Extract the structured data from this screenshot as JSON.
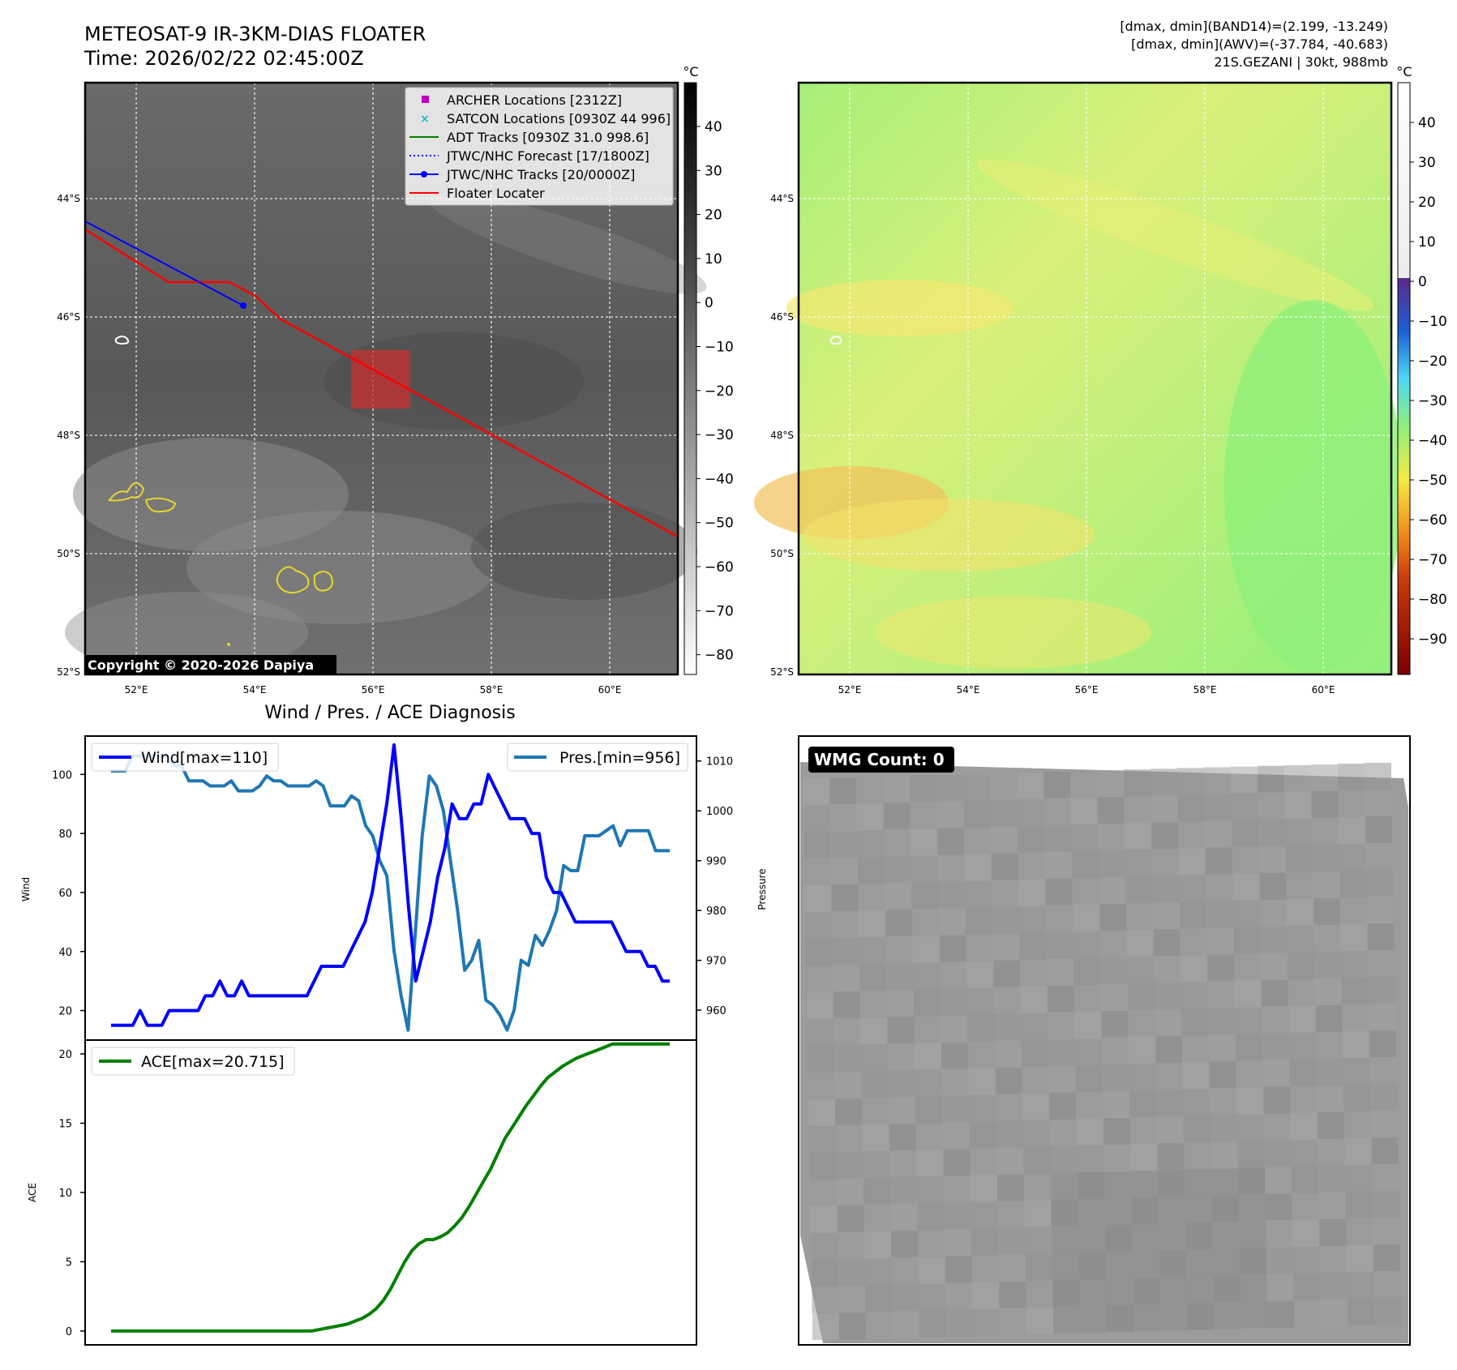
{
  "header": {
    "title": "METEOSAT-9 IR-3KM-DIAS FLOATER",
    "time": "Time: 2026/02/22 02:45:00Z",
    "band14": "[dmax, dmin](BAND14)=(2.199, -13.249)",
    "awv": "[dmax, dmin](AWV)=(-37.784, -40.683)",
    "storm": "21S.GEZANI | 30kt, 988mb"
  },
  "maps": {
    "lon_ticks": [
      "52°E",
      "54°E",
      "56°E",
      "58°E",
      "60°E"
    ],
    "lat_ticks": [
      "44°S",
      "46°S",
      "48°S",
      "50°S",
      "52°S"
    ],
    "copyright": "Copyright © 2020-2026 Dapiya",
    "ir_colorbar": {
      "unit": "°C",
      "ticks": [
        "40",
        "30",
        "20",
        "10",
        "0",
        "−10",
        "−20",
        "−30",
        "−40",
        "−50",
        "−60",
        "−70",
        "−80"
      ]
    },
    "awv_colorbar": {
      "unit": "°C",
      "ticks": [
        "40",
        "30",
        "20",
        "10",
        "0",
        "−10",
        "−20",
        "−30",
        "−40",
        "−50",
        "−60",
        "−70",
        "−80",
        "−90"
      ]
    },
    "legend": [
      {
        "label": "ARCHER Locations [2312Z]",
        "color": "#c000c0",
        "marker": "square"
      },
      {
        "label": "SATCON Locations [0930Z 44 996]",
        "color": "#17becf",
        "marker": "x"
      },
      {
        "label": "ADT Tracks [0930Z 31.0 998.6]",
        "color": "#008000",
        "marker": "line"
      },
      {
        "label": "JTWC/NHC Forecast [17/1800Z]",
        "color": "#0000ff",
        "marker": "dotted"
      },
      {
        "label": "JTWC/NHC Tracks [20/0000Z]",
        "color": "#0000ff",
        "marker": "line-dot"
      },
      {
        "label": "Floater Locater",
        "color": "#ff0000",
        "marker": "line"
      }
    ]
  },
  "diagnosis": {
    "title": "Wind / Pres. / ACE Diagnosis",
    "wind_label": "Wind",
    "pressure_label": "Pressure",
    "ace_label": "ACE",
    "wind_legend": "Wind[max=110]",
    "pres_legend": "Pres.[min=956]",
    "ace_legend": "ACE[max=20.715]",
    "wind_ticks": [
      "20",
      "40",
      "60",
      "80",
      "100"
    ],
    "pres_ticks": [
      "960",
      "970",
      "980",
      "990",
      "1000",
      "1010"
    ],
    "ace_ticks": [
      "0",
      "5",
      "10",
      "15",
      "20"
    ]
  },
  "wmg": {
    "label": "WMG Count: 0"
  },
  "chart_data": [
    {
      "type": "line",
      "title": "Wind / Pres. / ACE Diagnosis",
      "ylabel": "Wind",
      "ylim": [
        10,
        113
      ],
      "series": [
        {
          "name": "Wind[max=110]",
          "color": "#0000ff",
          "values": [
            15,
            15,
            15,
            15,
            20,
            15,
            15,
            15,
            20,
            20,
            20,
            20,
            20,
            25,
            25,
            30,
            25,
            25,
            30,
            25,
            25,
            25,
            25,
            25,
            25,
            25,
            25,
            25,
            30,
            35,
            35,
            35,
            35,
            40,
            45,
            50,
            60,
            75,
            90,
            110,
            85,
            55,
            30,
            40,
            50,
            65,
            75,
            90,
            85,
            85,
            90,
            90,
            100,
            95,
            90,
            85,
            85,
            85,
            80,
            80,
            65,
            60,
            60,
            55,
            50,
            50,
            50,
            50,
            50,
            50,
            45,
            40,
            40,
            40,
            35,
            35,
            30,
            30
          ]
        }
      ]
    },
    {
      "type": "line",
      "ylabel": "Pressure",
      "ylim": [
        954,
        1015
      ],
      "series": [
        {
          "name": "Pres.[min=956]",
          "color": "#1f77b4",
          "values": [
            1008,
            1008,
            1008,
            1011,
            1011,
            1011,
            1011,
            1011,
            1011,
            1009,
            1009,
            1006,
            1006,
            1006,
            1005,
            1005,
            1005,
            1006,
            1004,
            1004,
            1004,
            1005,
            1007,
            1006,
            1006,
            1005,
            1005,
            1005,
            1005,
            1006,
            1005,
            1001,
            1001,
            1001,
            1003,
            1002,
            997,
            995,
            990,
            987,
            972,
            963,
            956,
            975,
            995,
            1007,
            1005,
            1000,
            990,
            980,
            968,
            970,
            974,
            962,
            961,
            959,
            956,
            960,
            970,
            969,
            975,
            973,
            976,
            980,
            989,
            988,
            988,
            995,
            995,
            995,
            996,
            997,
            993,
            996,
            996,
            996,
            996,
            992,
            992,
            992
          ]
        }
      ]
    },
    {
      "type": "line",
      "ylabel": "ACE",
      "ylim": [
        -1,
        21
      ],
      "series": [
        {
          "name": "ACE[max=20.715]",
          "color": "#008000",
          "values": [
            0,
            0,
            0,
            0,
            0,
            0,
            0,
            0,
            0,
            0,
            0,
            0,
            0,
            0,
            0,
            0,
            0,
            0,
            0,
            0,
            0,
            0,
            0,
            0,
            0,
            0,
            0,
            0,
            0,
            0.1,
            0.2,
            0.3,
            0.4,
            0.5,
            0.7,
            0.9,
            1.2,
            1.6,
            2.2,
            3.0,
            4.0,
            5.0,
            5.8,
            6.3,
            6.6,
            6.6,
            6.8,
            7.1,
            7.6,
            8.2,
            9.0,
            9.9,
            10.8,
            11.7,
            12.8,
            13.9,
            14.7,
            15.5,
            16.3,
            17.0,
            17.7,
            18.3,
            18.7,
            19.1,
            19.4,
            19.7,
            19.9,
            20.1,
            20.3,
            20.5,
            20.715,
            20.715,
            20.715,
            20.715,
            20.715,
            20.715,
            20.715,
            20.715,
            20.715
          ]
        }
      ]
    }
  ]
}
